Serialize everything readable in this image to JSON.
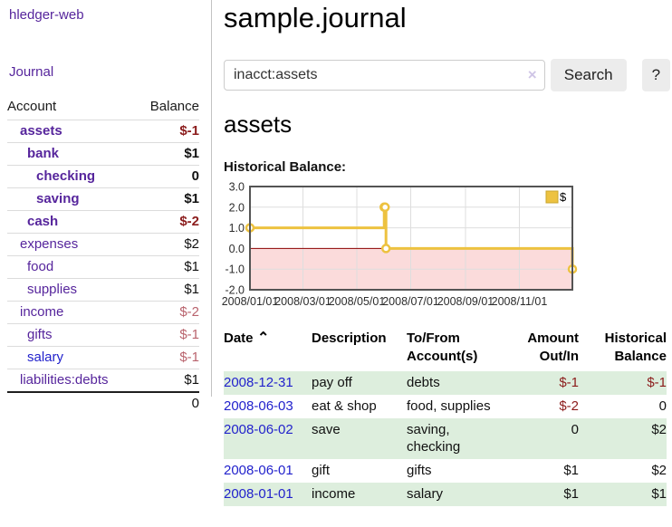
{
  "colors": {
    "purple": "#56259c",
    "blue": "#2222cc",
    "strong_neg": "#8b1c1c",
    "muted_neg": "#b9636d",
    "row_green": "#ddeedd",
    "divider": "#c3c3c3",
    "row_border": "#dcdcdc",
    "total_border": "#1f1f1f",
    "button_bg": "#ececec",
    "input_border": "#cccccc",
    "clear_icon": "#cfc5e6"
  },
  "sidebar": {
    "brand": "hledger-web",
    "nav": {
      "journal": "Journal"
    },
    "accounts_table": {
      "headers": {
        "account": "Account",
        "balance": "Balance"
      },
      "rows": [
        {
          "name": "assets",
          "balance": "$-1",
          "depth": 1,
          "bold": true,
          "neg": "strong"
        },
        {
          "name": "bank",
          "balance": "$1",
          "depth": 2,
          "bold": true,
          "neg": ""
        },
        {
          "name": "checking",
          "balance": "0",
          "depth": 3,
          "bold": true,
          "neg": ""
        },
        {
          "name": "saving",
          "balance": "$1",
          "depth": 3,
          "bold": true,
          "neg": ""
        },
        {
          "name": "cash",
          "balance": "$-2",
          "depth": 2,
          "bold": true,
          "neg": "strong"
        },
        {
          "name": "expenses",
          "balance": "$2",
          "depth": 1,
          "bold": false,
          "neg": ""
        },
        {
          "name": "food",
          "balance": "$1",
          "depth": 2,
          "bold": false,
          "neg": ""
        },
        {
          "name": "supplies",
          "balance": "$1",
          "depth": 2,
          "bold": false,
          "neg": ""
        },
        {
          "name": "income",
          "balance": "$-2",
          "depth": 1,
          "bold": false,
          "neg": "muted"
        },
        {
          "name": "gifts",
          "balance": "$-1",
          "depth": 2,
          "bold": false,
          "neg": "muted"
        },
        {
          "name": "salary",
          "balance": "$-1",
          "depth": 2,
          "bold": false,
          "neg": "muted",
          "link": "blue"
        },
        {
          "name": "liabilities:debts",
          "balance": "$1",
          "depth": 1,
          "bold": false,
          "neg": ""
        }
      ],
      "total": "0"
    }
  },
  "header": {
    "title": "sample.journal"
  },
  "search": {
    "value": "inacct:assets",
    "clear_icon": "×",
    "button_label": "Search",
    "help_label": "?"
  },
  "account_page": {
    "heading": "assets",
    "chart_label": "Historical Balance:"
  },
  "chart_data": {
    "type": "line",
    "step": true,
    "title": "Historical Balance:",
    "xlim": [
      "2008-01-01",
      "2008-12-31"
    ],
    "ylim": [
      -2,
      3
    ],
    "grid": true,
    "legend_position": "top-right",
    "x_ticks": [
      {
        "date": "2008-01-01",
        "label": "2008/01/01"
      },
      {
        "date": "2008-03-01",
        "label": "2008/03/01"
      },
      {
        "date": "2008-05-01",
        "label": "2008/05/01"
      },
      {
        "date": "2008-07-01",
        "label": "2008/07/01"
      },
      {
        "date": "2008-09-01",
        "label": "2008/09/01"
      },
      {
        "date": "2008-11-01",
        "label": "2008/11/01"
      }
    ],
    "y_ticks": [
      {
        "value": 3,
        "label": "3.0"
      },
      {
        "value": 2,
        "label": "2.0"
      },
      {
        "value": 1,
        "label": "1.0"
      },
      {
        "value": 0,
        "label": "0.0"
      },
      {
        "value": -1,
        "label": "-1.0"
      },
      {
        "value": -2,
        "label": "-2.0"
      }
    ],
    "series": [
      {
        "name": "$",
        "color": "#edc240",
        "points": [
          [
            "2008-01-01",
            1
          ],
          [
            "2008-06-01",
            2
          ],
          [
            "2008-06-02",
            2
          ],
          [
            "2008-06-03",
            0
          ],
          [
            "2008-12-31",
            -1
          ]
        ]
      }
    ],
    "colors": {
      "negative_region": "#fbdbdb",
      "zero_line": "#8b0000",
      "grid": "#dedede",
      "border": "#545454",
      "tick_text": "#2c2c2c",
      "legend_border": "#c9a62c"
    }
  },
  "register_table": {
    "sort_indicator": "⌃",
    "columns": [
      {
        "label_lines": [
          "Date"
        ],
        "align": "left",
        "sorted": true
      },
      {
        "label_lines": [
          "Description"
        ],
        "align": "left"
      },
      {
        "label_lines": [
          "To/From",
          "Account(s)"
        ],
        "align": "left"
      },
      {
        "label_lines": [
          "Amount",
          "Out/In"
        ],
        "align": "right"
      },
      {
        "label_lines": [
          "Historical",
          "Balance"
        ],
        "align": "right"
      }
    ],
    "rows": [
      {
        "date": "2008-12-31",
        "description": "pay off",
        "accounts": "debts",
        "amount": "$-1",
        "amount_neg": true,
        "balance": "$-1",
        "balance_neg": true
      },
      {
        "date": "2008-06-03",
        "description": "eat & shop",
        "accounts": "food, supplies",
        "amount": "$-2",
        "amount_neg": true,
        "balance": "0",
        "balance_neg": false
      },
      {
        "date": "2008-06-02",
        "description": "save",
        "accounts": "saving, checking",
        "amount": "0",
        "amount_neg": false,
        "balance": "$2",
        "balance_neg": false
      },
      {
        "date": "2008-06-01",
        "description": "gift",
        "accounts": "gifts",
        "amount": "$1",
        "amount_neg": false,
        "balance": "$2",
        "balance_neg": false
      },
      {
        "date": "2008-01-01",
        "description": "income",
        "accounts": "salary",
        "amount": "$1",
        "amount_neg": false,
        "balance": "$1",
        "balance_neg": false
      }
    ]
  }
}
